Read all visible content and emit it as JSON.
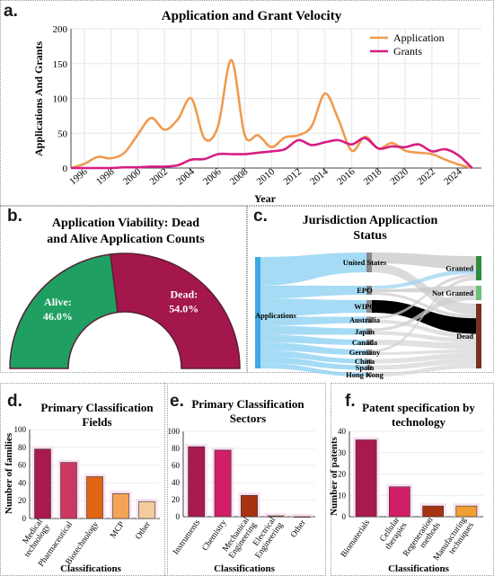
{
  "panels": {
    "a": {
      "label": "a."
    },
    "b": {
      "label": "b."
    },
    "c": {
      "label": "c."
    },
    "d": {
      "label": "d."
    },
    "e": {
      "label": "e."
    },
    "f": {
      "label": "f."
    }
  },
  "chart_data": [
    {
      "id": "a",
      "type": "line",
      "title": "Application and Grant Velocity",
      "xlabel": "Year",
      "ylabel": "Applications And Grants",
      "x": [
        1995,
        1996,
        1997,
        1998,
        1999,
        2000,
        2001,
        2002,
        2003,
        2004,
        2005,
        2006,
        2007,
        2008,
        2009,
        2010,
        2011,
        2012,
        2013,
        2014,
        2015,
        2016,
        2017,
        2018,
        2019,
        2020,
        2021,
        2022,
        2023,
        2024,
        2025
      ],
      "xticks": [
        "1996",
        "1998",
        "2000",
        "2002",
        "2004",
        "2006",
        "2008",
        "2010",
        "2012",
        "2014",
        "2016",
        "2018",
        "2020",
        "2022",
        "2024"
      ],
      "ylim": [
        0,
        200
      ],
      "yticks": [
        "0",
        "50",
        "100",
        "150",
        "200"
      ],
      "legend_position": "top-right",
      "series": [
        {
          "name": "Application",
          "color": "#ef9b4f",
          "values": [
            0,
            6,
            16,
            14,
            22,
            48,
            72,
            55,
            70,
            100,
            42,
            60,
            155,
            47,
            47,
            30,
            44,
            47,
            60,
            107,
            70,
            25,
            45,
            28,
            36,
            25,
            22,
            20,
            12,
            5,
            0
          ]
        },
        {
          "name": "Grants",
          "color": "#d61e83",
          "values": [
            0,
            0,
            0,
            0,
            1,
            1,
            2,
            2,
            4,
            12,
            13,
            20,
            20,
            20,
            22,
            24,
            27,
            40,
            33,
            37,
            40,
            34,
            43,
            28,
            31,
            30,
            34,
            24,
            27,
            18,
            0
          ]
        }
      ]
    },
    {
      "id": "b",
      "type": "pie",
      "title": "Application Viability: Dead and Alive Application Counts",
      "slices": [
        {
          "label": "Alive:",
          "value_label": "46.0%",
          "value": 46.0,
          "color": "#1f9f61"
        },
        {
          "label": "Dead:",
          "value_label": "54.0%",
          "value": 54.0,
          "color": "#a3174c"
        }
      ]
    },
    {
      "id": "c",
      "type": "sankey",
      "title": "Jurisdiction Applicaction Status",
      "source": "Applications",
      "jurisdictions": [
        "United States",
        "EPO",
        "WIPO",
        "Australia",
        "Japan",
        "Canada",
        "Germany",
        "China",
        "Spain",
        "Hong Kong"
      ],
      "outcomes": [
        "Granted",
        "Not Granted",
        "Dead"
      ]
    },
    {
      "id": "d",
      "type": "bar",
      "title": "Primary Classification Fields",
      "xlabel": "Classifications",
      "ylabel": "Number of families",
      "categories": [
        "Medical technology",
        "Pharmaceutical",
        "Biotechnology",
        "MCP",
        "Other"
      ],
      "values": [
        78,
        63,
        47,
        28,
        19
      ],
      "colors": [
        "#a8194e",
        "#cc3764",
        "#e06614",
        "#f5a457",
        "#f4cc9c"
      ],
      "ylim": [
        0,
        100
      ],
      "yticks": [
        "0",
        "20",
        "40",
        "60",
        "80",
        "100"
      ]
    },
    {
      "id": "e",
      "type": "bar",
      "title": "Primary Classification Sectors",
      "xlabel": "Classifications",
      "ylabel": "",
      "categories": [
        "Instruments",
        "Chemistry",
        "Mechanical Engineering",
        "Electrical Engineering",
        "Other"
      ],
      "values": [
        82,
        78,
        25,
        1,
        0
      ],
      "colors": [
        "#a8194e",
        "#d21e66",
        "#a83313",
        "#e06614",
        "#f5a457"
      ],
      "ylim": [
        0,
        100
      ],
      "yticks": [
        "0",
        "20",
        "40",
        "60",
        "80",
        "100"
      ]
    },
    {
      "id": "f",
      "type": "bar",
      "title": "Patent specification by technology",
      "xlabel": "Classifications",
      "ylabel": "Number of patents",
      "categories": [
        "Biomaterials",
        "Cellular therapies",
        "Regeneration methods",
        "Manufacturing techniques"
      ],
      "values": [
        36,
        14,
        5,
        5
      ],
      "colors": [
        "#a8194e",
        "#d21e66",
        "#a83313",
        "#f0a032"
      ],
      "ylim": [
        0,
        40
      ],
      "yticks": [
        "0",
        "10",
        "20",
        "30",
        "40"
      ]
    }
  ]
}
